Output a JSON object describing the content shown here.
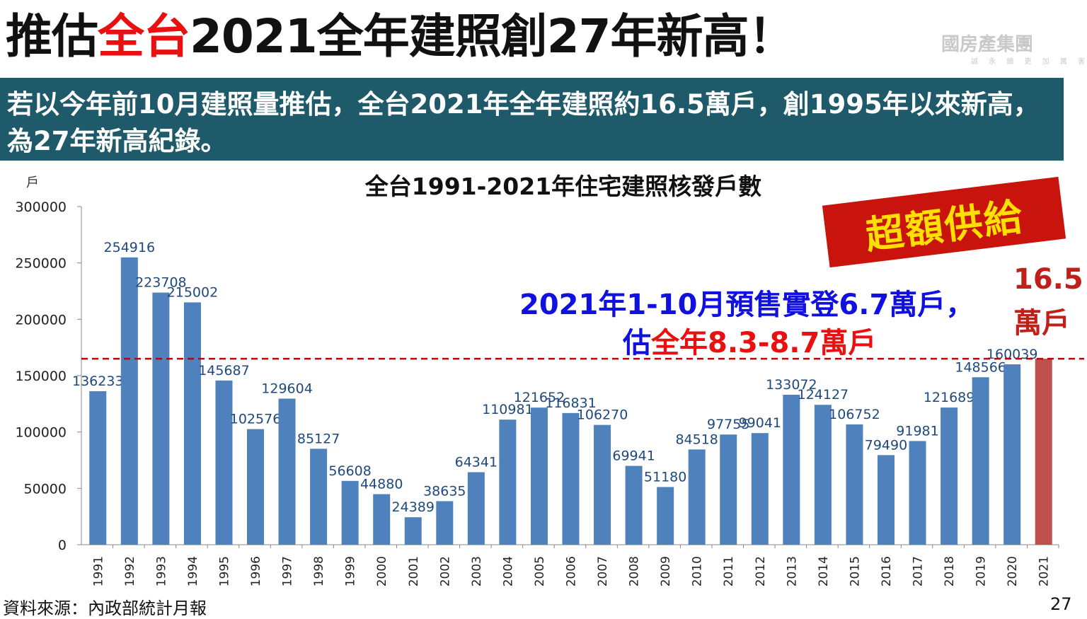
{
  "slide": {
    "title_part1": "推估",
    "title_part2": "全台",
    "title_part3": "2021全年建照創27年新高！",
    "logo_text": "國房產集團",
    "logo_sub": "誠 永 續   更 加 厲 害",
    "banner_text": "若以今年前10月建照量推估，全台2021年全年建照約16.5萬戶，創1995年以來新高，為27年新高紀錄。",
    "stamp_text": "超額供給",
    "note_line1": "2021年1-10月預售實登6.7萬戶，",
    "note_line2_part1": "估",
    "note_line2_part2": "全年8.3-8.7萬戶",
    "final_value": "16.5",
    "final_unit": "萬戶",
    "source": "資料來源：內政部統計月報",
    "page_number": "27"
  },
  "colors": {
    "bar": "#4f81bd",
    "highlight_bar": "#c0504d",
    "label": "#1f497d",
    "reference_line": "#c00000",
    "banner": "#1f5a6a",
    "title_accent": "#e81010"
  },
  "chart_data": {
    "type": "bar",
    "title": "全台1991-2021年住宅建照核發戶數",
    "ylabel": "戶",
    "xlabel": "",
    "ylim": [
      0,
      300000
    ],
    "yticks": [
      0,
      50000,
      100000,
      150000,
      200000,
      250000,
      300000
    ],
    "grid": false,
    "categories": [
      "1991",
      "1992",
      "1993",
      "1994",
      "1995",
      "1996",
      "1997",
      "1998",
      "1999",
      "2000",
      "2001",
      "2002",
      "2003",
      "2004",
      "2005",
      "2006",
      "2007",
      "2008",
      "2009",
      "2010",
      "2011",
      "2012",
      "2013",
      "2014",
      "2015",
      "2016",
      "2017",
      "2018",
      "2019",
      "2020",
      "2021"
    ],
    "values": [
      136233,
      254916,
      223708,
      215002,
      145687,
      102576,
      129604,
      85127,
      56608,
      44880,
      24389,
      38635,
      64341,
      110981,
      121652,
      116831,
      106270,
      69941,
      51180,
      84518,
      97755,
      99041,
      133072,
      124127,
      106752,
      79490,
      91981,
      121689,
      148566,
      160039,
      165000
    ],
    "data_labels": [
      "136233",
      "254916",
      "223708",
      "215002",
      "145687",
      "102576",
      "129604",
      "85127",
      "56608",
      "44880",
      "24389",
      "38635",
      "64341",
      "110981",
      "121652",
      "116831",
      "106270",
      "69941",
      "51180",
      "84518",
      "97755",
      "99041",
      "133072",
      "124127",
      "106752",
      "79490",
      "91981",
      "121689",
      "148566",
      "160039",
      ""
    ],
    "highlight_index": 30,
    "reference_line_value": 165000
  }
}
